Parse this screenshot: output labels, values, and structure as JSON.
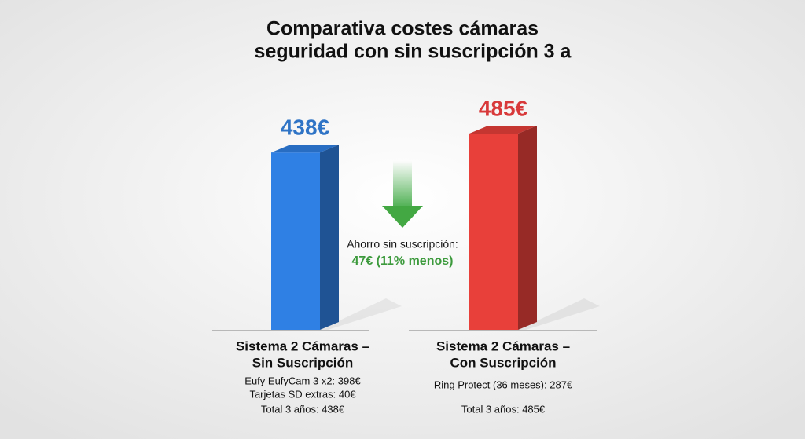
{
  "chart_data": {
    "type": "bar",
    "title": [
      "Comparativa costes cámaras",
      "seguridad con sin suscripción 3 a"
    ],
    "categories": [
      [
        "Sistema 2 Cámaras –",
        "Sin Suscripción"
      ],
      [
        "Sistema 2 Cámaras –",
        "Con Suscripción"
      ]
    ],
    "values": [
      438,
      485
    ],
    "value_labels": [
      "438€",
      "485€"
    ],
    "colors": [
      "#2f80e4",
      "#e8403a"
    ],
    "label_colors": [
      "#2f74c6",
      "#d8393a"
    ],
    "details": [
      [
        "Eufy EufyCam 3 x2: 398€",
        "Tarjetas SD extras: 40€"
      ],
      [
        "Ring Protect (36 meses): 287€"
      ]
    ],
    "totals": [
      "Total 3 años: 438€",
      "Total 3 años: 485€"
    ],
    "annotation": [
      "Ahorro sin suscripción:",
      "47€ (11% menos)"
    ]
  }
}
